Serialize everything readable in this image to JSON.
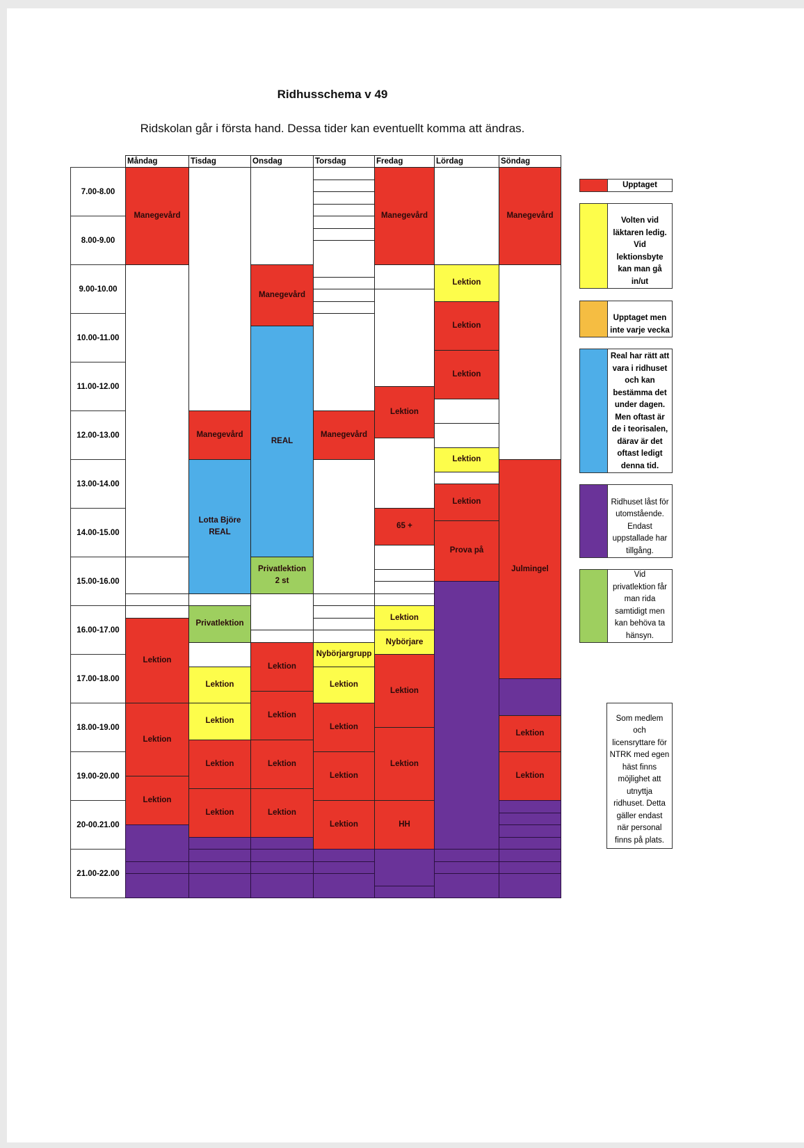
{
  "title": "Ridhusschema v 49",
  "subtitle": "Ridskolan går i första hand. Dessa tider kan eventuellt komma att ändras.",
  "colors": {
    "red": "#e8352a",
    "yellow": "#fdfd4b",
    "orange": "#f5bd42",
    "blue": "#4eaee8",
    "purple": "#6a3399",
    "green": "#9ecf5f",
    "empty": "#ffffff"
  },
  "time_slots": [
    "7.00-8.00",
    "8.00-9.00",
    "9.00-10.00",
    "10.00-11.00",
    "11.00-12.00",
    "12.00-13.00",
    "13.00-14.00",
    "14.00-15.00",
    "15.00-16.00",
    "16.00-17.00",
    "17.00-18.00",
    "18.00-19.00",
    "19.00-20.00",
    "20-00.21.00",
    "21.00-22.00"
  ],
  "days": [
    {
      "name": "Måndag",
      "blocks": [
        {
          "start": 7,
          "end": 9,
          "type": "red",
          "label": "Manegevård"
        },
        {
          "start": 9,
          "end": 15,
          "type": "empty",
          "label": ""
        },
        {
          "start": 15,
          "end": 15.75,
          "type": "empty",
          "label": ""
        },
        {
          "start": 15.75,
          "end": 16,
          "type": "empty",
          "label": ""
        },
        {
          "start": 16,
          "end": 16.25,
          "type": "empty",
          "label": ""
        },
        {
          "start": 16.25,
          "end": 18,
          "type": "red",
          "label": "Lektion"
        },
        {
          "start": 18,
          "end": 19.5,
          "type": "red",
          "label": "Lektion"
        },
        {
          "start": 19.5,
          "end": 20.5,
          "type": "red",
          "label": "Lektion"
        },
        {
          "start": 20.5,
          "end": 21.25,
          "type": "purple",
          "label": ""
        },
        {
          "start": 21.25,
          "end": 21.5,
          "type": "purple",
          "label": ""
        },
        {
          "start": 21.5,
          "end": 22,
          "type": "purple",
          "label": ""
        }
      ]
    },
    {
      "name": "Tisdag",
      "blocks": [
        {
          "start": 7,
          "end": 12,
          "type": "empty",
          "label": ""
        },
        {
          "start": 12,
          "end": 13,
          "type": "red",
          "label": "Manegevård"
        },
        {
          "start": 13,
          "end": 15.75,
          "type": "blue",
          "label": "Lotta Björe\nREAL"
        },
        {
          "start": 15.75,
          "end": 16,
          "type": "empty",
          "label": ""
        },
        {
          "start": 16,
          "end": 16.75,
          "type": "green",
          "label": "Privatlektion"
        },
        {
          "start": 16.75,
          "end": 17.25,
          "type": "empty",
          "label": ""
        },
        {
          "start": 17.25,
          "end": 18,
          "type": "yellow",
          "label": "Lektion"
        },
        {
          "start": 18,
          "end": 18.75,
          "type": "yellow",
          "label": "Lektion"
        },
        {
          "start": 18.75,
          "end": 19.75,
          "type": "red",
          "label": "Lektion"
        },
        {
          "start": 19.75,
          "end": 20.75,
          "type": "red",
          "label": "Lektion"
        },
        {
          "start": 20.75,
          "end": 21,
          "type": "purple",
          "label": ""
        },
        {
          "start": 21,
          "end": 21.25,
          "type": "purple",
          "label": ""
        },
        {
          "start": 21.25,
          "end": 21.5,
          "type": "purple",
          "label": ""
        },
        {
          "start": 21.5,
          "end": 22,
          "type": "purple",
          "label": ""
        }
      ]
    },
    {
      "name": "Onsdag",
      "blocks": [
        {
          "start": 7,
          "end": 9,
          "type": "empty",
          "label": ""
        },
        {
          "start": 9,
          "end": 10.25,
          "type": "red",
          "label": "Manegevård"
        },
        {
          "start": 10.25,
          "end": 15,
          "type": "blue",
          "label": "REAL"
        },
        {
          "start": 15,
          "end": 15.75,
          "type": "green",
          "label": "Privatlektion\n2 st"
        },
        {
          "start": 15.75,
          "end": 16.5,
          "type": "empty",
          "label": ""
        },
        {
          "start": 16.5,
          "end": 16.75,
          "type": "empty",
          "label": ""
        },
        {
          "start": 16.75,
          "end": 17.75,
          "type": "red",
          "label": "Lektion"
        },
        {
          "start": 17.75,
          "end": 18.75,
          "type": "red",
          "label": "Lektion"
        },
        {
          "start": 18.75,
          "end": 19.75,
          "type": "red",
          "label": "Lektion"
        },
        {
          "start": 19.75,
          "end": 20.75,
          "type": "red",
          "label": "Lektion"
        },
        {
          "start": 20.75,
          "end": 21,
          "type": "purple",
          "label": ""
        },
        {
          "start": 21,
          "end": 21.25,
          "type": "purple",
          "label": ""
        },
        {
          "start": 21.25,
          "end": 21.5,
          "type": "purple",
          "label": ""
        },
        {
          "start": 21.5,
          "end": 22,
          "type": "purple",
          "label": ""
        }
      ]
    },
    {
      "name": "Torsdag",
      "blocks": [
        {
          "start": 7,
          "end": 7.25,
          "type": "empty",
          "label": ""
        },
        {
          "start": 7.25,
          "end": 7.5,
          "type": "empty",
          "label": ""
        },
        {
          "start": 7.5,
          "end": 7.75,
          "type": "empty",
          "label": ""
        },
        {
          "start": 7.75,
          "end": 8,
          "type": "empty",
          "label": ""
        },
        {
          "start": 8,
          "end": 8.25,
          "type": "empty",
          "label": ""
        },
        {
          "start": 8.25,
          "end": 8.5,
          "type": "empty",
          "label": ""
        },
        {
          "start": 8.5,
          "end": 9.25,
          "type": "empty",
          "label": ""
        },
        {
          "start": 9.25,
          "end": 9.5,
          "type": "empty",
          "label": ""
        },
        {
          "start": 9.5,
          "end": 9.75,
          "type": "empty",
          "label": ""
        },
        {
          "start": 9.75,
          "end": 10,
          "type": "empty",
          "label": ""
        },
        {
          "start": 10,
          "end": 12,
          "type": "empty",
          "label": ""
        },
        {
          "start": 12,
          "end": 13,
          "type": "red",
          "label": "Manegevård"
        },
        {
          "start": 13,
          "end": 15.75,
          "type": "empty",
          "label": ""
        },
        {
          "start": 15.75,
          "end": 16,
          "type": "empty",
          "label": ""
        },
        {
          "start": 16,
          "end": 16.25,
          "type": "empty",
          "label": ""
        },
        {
          "start": 16.25,
          "end": 16.5,
          "type": "empty",
          "label": ""
        },
        {
          "start": 16.5,
          "end": 16.75,
          "type": "empty",
          "label": ""
        },
        {
          "start": 16.75,
          "end": 17.25,
          "type": "yellow",
          "label": "Nybörjargrupp"
        },
        {
          "start": 17.25,
          "end": 18,
          "type": "yellow",
          "label": "Lektion"
        },
        {
          "start": 18,
          "end": 19,
          "type": "red",
          "label": "Lektion"
        },
        {
          "start": 19,
          "end": 20,
          "type": "red",
          "label": "Lektion"
        },
        {
          "start": 20,
          "end": 21,
          "type": "red",
          "label": "Lektion"
        },
        {
          "start": 21,
          "end": 21.25,
          "type": "purple",
          "label": ""
        },
        {
          "start": 21.25,
          "end": 21.5,
          "type": "purple",
          "label": ""
        },
        {
          "start": 21.5,
          "end": 22,
          "type": "purple",
          "label": ""
        }
      ]
    },
    {
      "name": "Fredag",
      "blocks": [
        {
          "start": 7,
          "end": 9,
          "type": "red",
          "label": "Manegevård"
        },
        {
          "start": 9,
          "end": 9.5,
          "type": "empty",
          "label": ""
        },
        {
          "start": 9.5,
          "end": 11.5,
          "type": "empty",
          "label": ""
        },
        {
          "start": 11.5,
          "end": 12.55,
          "type": "red",
          "label": "Lektion"
        },
        {
          "start": 12.55,
          "end": 14,
          "type": "empty",
          "label": ""
        },
        {
          "start": 14,
          "end": 14.75,
          "type": "red",
          "label": "65 +"
        },
        {
          "start": 14.75,
          "end": 15.25,
          "type": "empty",
          "label": ""
        },
        {
          "start": 15.25,
          "end": 15.5,
          "type": "empty",
          "label": ""
        },
        {
          "start": 15.5,
          "end": 15.75,
          "type": "empty",
          "label": ""
        },
        {
          "start": 15.75,
          "end": 16,
          "type": "empty",
          "label": ""
        },
        {
          "start": 16,
          "end": 16.5,
          "type": "yellow",
          "label": "Lektion"
        },
        {
          "start": 16.5,
          "end": 17,
          "type": "yellow",
          "label": "Nybörjare"
        },
        {
          "start": 17,
          "end": 18.5,
          "type": "red",
          "label": "Lektion"
        },
        {
          "start": 18.5,
          "end": 20,
          "type": "red",
          "label": "Lektion"
        },
        {
          "start": 20,
          "end": 21,
          "type": "red",
          "label": "HH"
        },
        {
          "start": 21,
          "end": 21.75,
          "type": "purple",
          "label": ""
        },
        {
          "start": 21.75,
          "end": 22,
          "type": "purple",
          "label": ""
        }
      ]
    },
    {
      "name": "Lördag",
      "blocks": [
        {
          "start": 7,
          "end": 9,
          "type": "empty",
          "label": ""
        },
        {
          "start": 9,
          "end": 9.75,
          "type": "yellow",
          "label": "Lektion"
        },
        {
          "start": 9.75,
          "end": 10.75,
          "type": "red",
          "label": "Lektion"
        },
        {
          "start": 10.75,
          "end": 11.75,
          "type": "red",
          "label": "Lektion"
        },
        {
          "start": 11.75,
          "end": 12.25,
          "type": "empty",
          "label": ""
        },
        {
          "start": 12.25,
          "end": 12.75,
          "type": "empty",
          "label": ""
        },
        {
          "start": 12.75,
          "end": 13.25,
          "type": "yellow",
          "label": "Lektion"
        },
        {
          "start": 13.25,
          "end": 13.5,
          "type": "empty",
          "label": ""
        },
        {
          "start": 13.5,
          "end": 14.25,
          "type": "red",
          "label": "Lektion"
        },
        {
          "start": 14.25,
          "end": 15.5,
          "type": "red",
          "label": "Prova på"
        },
        {
          "start": 15.5,
          "end": 21,
          "type": "purple",
          "label": ""
        },
        {
          "start": 21,
          "end": 21.25,
          "type": "purple",
          "label": ""
        },
        {
          "start": 21.25,
          "end": 21.5,
          "type": "purple",
          "label": ""
        },
        {
          "start": 21.5,
          "end": 22,
          "type": "purple",
          "label": ""
        }
      ]
    },
    {
      "name": "Söndag",
      "blocks": [
        {
          "start": 7,
          "end": 9,
          "type": "red",
          "label": "Manegevård"
        },
        {
          "start": 9,
          "end": 13,
          "type": "empty",
          "label": ""
        },
        {
          "start": 13,
          "end": 17.5,
          "type": "red",
          "label": "Julmingel"
        },
        {
          "start": 17.5,
          "end": 18.25,
          "type": "purple",
          "label": ""
        },
        {
          "start": 18.25,
          "end": 19,
          "type": "red",
          "label": "Lektion"
        },
        {
          "start": 19,
          "end": 20,
          "type": "red",
          "label": "Lektion"
        },
        {
          "start": 20,
          "end": 20.25,
          "type": "purple",
          "label": ""
        },
        {
          "start": 20.25,
          "end": 20.5,
          "type": "purple",
          "label": ""
        },
        {
          "start": 20.5,
          "end": 20.75,
          "type": "purple",
          "label": ""
        },
        {
          "start": 20.75,
          "end": 21,
          "type": "purple",
          "label": ""
        },
        {
          "start": 21,
          "end": 21.25,
          "type": "purple",
          "label": ""
        },
        {
          "start": 21.25,
          "end": 21.5,
          "type": "purple",
          "label": ""
        },
        {
          "start": 21.5,
          "end": 22,
          "type": "purple",
          "label": ""
        }
      ]
    }
  ],
  "legend": [
    {
      "type": "red",
      "text": "Upptaget",
      "bold": true
    },
    {
      "type": "yellow",
      "text": "Volten vid\nläktaren ledig.\nVid\nlektionsbyte\nkan man gå\nin/ut",
      "bold": true
    },
    {
      "type": "orange",
      "text": "Upptaget men\ninte varje vecka",
      "bold": true
    },
    {
      "type": "blue",
      "text": "Real har rätt att\nvara i ridhuset\noch kan\nbestämma det\nunder dagen.\nMen oftast är\nde i teorisalen,\ndärav är det\noftast ledigt\ndenna tid.",
      "bold": true
    },
    {
      "type": "purple",
      "text": "Ridhuset låst för\nutomstående.\nEndast\nuppstallade har\ntillgång.",
      "bold": false
    },
    {
      "type": "green",
      "text": "Vid\nprivatlektion får\nman rida\nsamtidigt men\nkan behöva ta\nhänsyn.",
      "bold": false
    }
  ],
  "note": "Som medlem\noch\nlicensryttare för\nNTRK med egen\nhäst finns\nmöjlighet att\nutnyttja\nridhuset. Detta\ngäller endast\nnär personal\nfinns på plats."
}
